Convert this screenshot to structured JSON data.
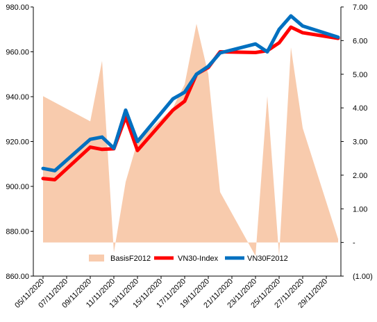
{
  "chart_data": {
    "type": "line",
    "x": [
      "05/11/2020",
      "06/11/2020",
      "09/11/2020",
      "10/11/2020",
      "11/11/2020",
      "12/11/2020",
      "13/11/2020",
      "16/11/2020",
      "17/11/2020",
      "18/11/2020",
      "19/11/2020",
      "20/11/2020",
      "23/11/2020",
      "24/11/2020",
      "25/11/2020",
      "26/11/2020",
      "27/11/2020",
      "30/11/2020"
    ],
    "x_tick_labels": [
      "05/11/2020",
      "07/11/2020",
      "09/11/2020",
      "11/11/2020",
      "13/11/2020",
      "15/11/2020",
      "17/11/2020",
      "19/11/2020",
      "21/11/2020",
      "23/11/2020",
      "25/11/2020",
      "27/11/2020",
      "29/11/2020"
    ],
    "series": [
      {
        "name": "BasisF2012",
        "type": "area",
        "axis": "right",
        "color": "#f8cbad",
        "points": [
          [
            "05/11/2020",
            4.35
          ],
          [
            "09/11/2020",
            3.6
          ],
          [
            "10/11/2020",
            5.4
          ],
          [
            "11/11/2020",
            -0.3
          ],
          [
            "12/11/2020",
            1.8
          ],
          [
            "13/11/2020",
            3.0
          ],
          [
            "16/11/2020",
            4.0
          ],
          [
            "17/11/2020",
            4.7
          ],
          [
            "18/11/2020",
            6.5
          ],
          [
            "19/11/2020",
            5.0
          ],
          [
            "20/11/2020",
            1.5
          ],
          [
            "23/11/2020",
            -0.4
          ],
          [
            "24/11/2020",
            4.35
          ],
          [
            "25/11/2020",
            -0.4
          ],
          [
            "26/11/2020",
            5.8
          ],
          [
            "27/11/2020",
            3.4
          ],
          [
            "30/11/2020",
            0.1
          ]
        ]
      },
      {
        "name": "VN30-Index",
        "type": "line",
        "axis": "left",
        "color": "#ff0000",
        "points": [
          [
            "05/11/2020",
            903.5
          ],
          [
            "06/11/2020",
            903.0
          ],
          [
            "09/11/2020",
            917.5
          ],
          [
            "10/11/2020",
            916.5
          ],
          [
            "11/11/2020",
            916.8
          ],
          [
            "12/11/2020",
            931.0
          ],
          [
            "13/11/2020",
            916.0
          ],
          [
            "16/11/2020",
            934.0
          ],
          [
            "17/11/2020",
            938.0
          ],
          [
            "18/11/2020",
            950.0
          ],
          [
            "19/11/2020",
            953.0
          ],
          [
            "20/11/2020",
            960.0
          ],
          [
            "23/11/2020",
            959.7
          ],
          [
            "24/11/2020",
            960.5
          ],
          [
            "25/11/2020",
            964.0
          ],
          [
            "26/11/2020",
            971.0
          ],
          [
            "27/11/2020",
            968.5
          ],
          [
            "30/11/2020",
            966.0
          ]
        ]
      },
      {
        "name": "VN30F2012",
        "type": "line",
        "axis": "left",
        "color": "#0070c0",
        "points": [
          [
            "05/11/2020",
            908.0
          ],
          [
            "06/11/2020",
            907.0
          ],
          [
            "09/11/2020",
            921.0
          ],
          [
            "10/11/2020",
            922.0
          ],
          [
            "11/11/2020",
            917.0
          ],
          [
            "12/11/2020",
            934.0
          ],
          [
            "13/11/2020",
            920.0
          ],
          [
            "16/11/2020",
            939.0
          ],
          [
            "17/11/2020",
            942.0
          ],
          [
            "18/11/2020",
            950.0
          ],
          [
            "19/11/2020",
            953.5
          ],
          [
            "20/11/2020",
            959.5
          ],
          [
            "23/11/2020",
            963.5
          ],
          [
            "24/11/2020",
            960.0
          ],
          [
            "25/11/2020",
            970.0
          ],
          [
            "26/11/2020",
            976.0
          ],
          [
            "27/11/2020",
            971.5
          ],
          [
            "30/11/2020",
            966.5
          ]
        ]
      }
    ],
    "y_left": {
      "min": 860,
      "max": 980,
      "step": 20,
      "tick_labels": [
        "860.00",
        "880.00",
        "900.00",
        "920.00",
        "940.00",
        "960.00",
        "980.00"
      ]
    },
    "y_right": {
      "min": -1,
      "max": 7,
      "step": 1,
      "tick_labels": [
        "(1.00)",
        "-",
        "1.00",
        "2.00",
        "3.00",
        "4.00",
        "5.00",
        "6.00",
        "7.00"
      ]
    },
    "grid": false,
    "legend": {
      "position": "bottom-inside",
      "entries": [
        "BasisF2012",
        "VN30-Index",
        "VN30F2012"
      ]
    },
    "title": "",
    "xlabel": "",
    "ylabel": ""
  }
}
